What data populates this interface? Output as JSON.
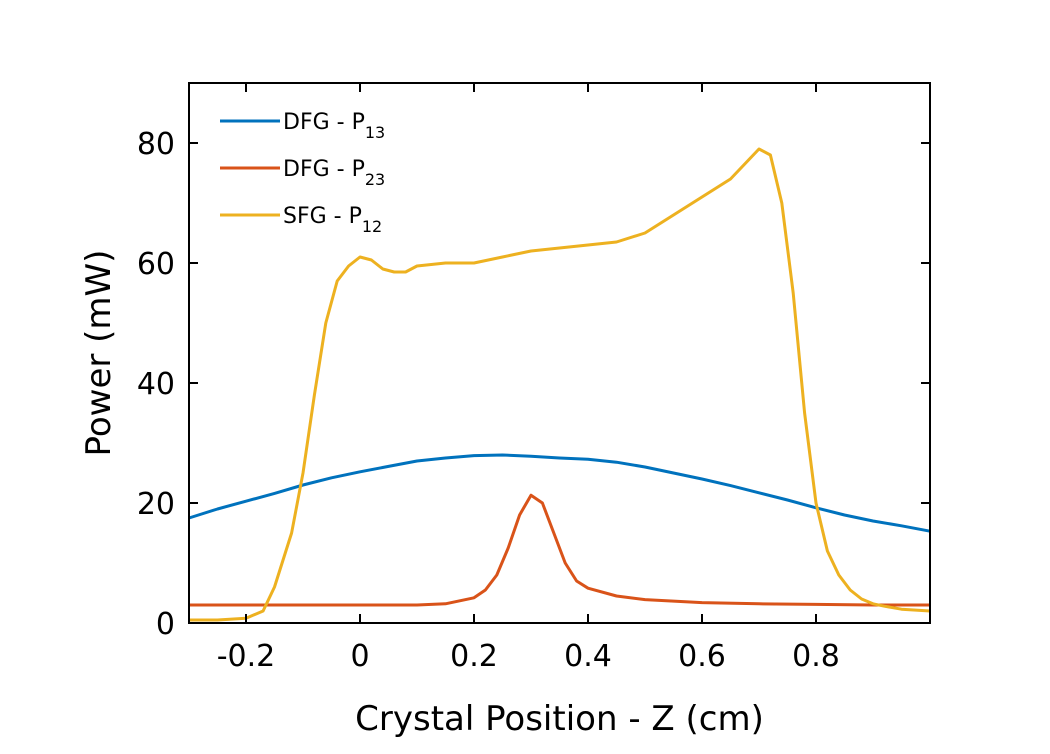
{
  "chart_data": {
    "type": "line",
    "title": "",
    "xlabel": "Crystal Position - Z (cm)",
    "ylabel": "Power (mW)",
    "xlim": [
      -0.3,
      1.0
    ],
    "ylim": [
      0,
      90
    ],
    "xticks": [
      -0.2,
      0,
      0.2,
      0.4,
      0.6,
      0.8
    ],
    "xtick_labels": [
      "-0.2",
      "0",
      "0.2",
      "0.4",
      "0.6",
      "0.8"
    ],
    "yticks": [
      0,
      20,
      40,
      60,
      80
    ],
    "ytick_labels": [
      "0",
      "20",
      "40",
      "60",
      "80"
    ],
    "grid": false,
    "legend_position": "top-left",
    "series": [
      {
        "name": "DFG - P13",
        "label_main": "DFG - P",
        "label_sub": "13",
        "color": "#0072BD",
        "x": [
          -0.3,
          -0.25,
          -0.2,
          -0.15,
          -0.1,
          -0.05,
          0.0,
          0.05,
          0.1,
          0.15,
          0.2,
          0.25,
          0.3,
          0.35,
          0.4,
          0.45,
          0.5,
          0.55,
          0.6,
          0.65,
          0.7,
          0.75,
          0.8,
          0.85,
          0.9,
          0.95,
          1.0
        ],
        "y": [
          17.5,
          19.0,
          20.3,
          21.6,
          23.0,
          24.2,
          25.2,
          26.1,
          27.0,
          27.5,
          27.9,
          28.0,
          27.8,
          27.5,
          27.3,
          26.8,
          26.0,
          25.0,
          24.0,
          22.9,
          21.7,
          20.5,
          19.2,
          18.0,
          17.0,
          16.2,
          15.3
        ]
      },
      {
        "name": "DFG - P23",
        "label_main": "DFG - P",
        "label_sub": "23",
        "color": "#D95319",
        "x": [
          -0.3,
          -0.2,
          -0.1,
          0.0,
          0.1,
          0.15,
          0.2,
          0.22,
          0.24,
          0.26,
          0.28,
          0.3,
          0.32,
          0.34,
          0.36,
          0.38,
          0.4,
          0.45,
          0.5,
          0.6,
          0.7,
          0.8,
          0.9,
          1.0
        ],
        "y": [
          3.0,
          3.0,
          3.0,
          3.0,
          3.0,
          3.2,
          4.2,
          5.5,
          8.0,
          12.5,
          18.0,
          21.3,
          20.0,
          15.0,
          10.0,
          7.0,
          5.8,
          4.5,
          3.9,
          3.4,
          3.2,
          3.1,
          3.0,
          3.0
        ]
      },
      {
        "name": "SFG - P12",
        "label_main": "SFG - P",
        "label_sub": "12",
        "color": "#EDB120",
        "x": [
          -0.3,
          -0.25,
          -0.2,
          -0.17,
          -0.15,
          -0.12,
          -0.1,
          -0.08,
          -0.06,
          -0.04,
          -0.02,
          0.0,
          0.02,
          0.04,
          0.06,
          0.08,
          0.1,
          0.15,
          0.2,
          0.25,
          0.3,
          0.35,
          0.4,
          0.45,
          0.5,
          0.55,
          0.6,
          0.65,
          0.68,
          0.7,
          0.72,
          0.74,
          0.76,
          0.78,
          0.8,
          0.82,
          0.84,
          0.86,
          0.88,
          0.9,
          0.92,
          0.95,
          1.0
        ],
        "y": [
          0.5,
          0.5,
          0.8,
          2.0,
          6.0,
          15.0,
          25.0,
          38.0,
          50.0,
          57.0,
          59.5,
          61.0,
          60.5,
          59.0,
          58.5,
          58.5,
          59.5,
          60.0,
          60.0,
          61.0,
          62.0,
          62.5,
          63.0,
          63.5,
          65.0,
          68.0,
          71.0,
          74.0,
          77.0,
          79.0,
          78.0,
          70.0,
          55.0,
          35.0,
          20.0,
          12.0,
          8.0,
          5.5,
          4.0,
          3.2,
          2.8,
          2.3,
          2.0
        ]
      }
    ]
  }
}
